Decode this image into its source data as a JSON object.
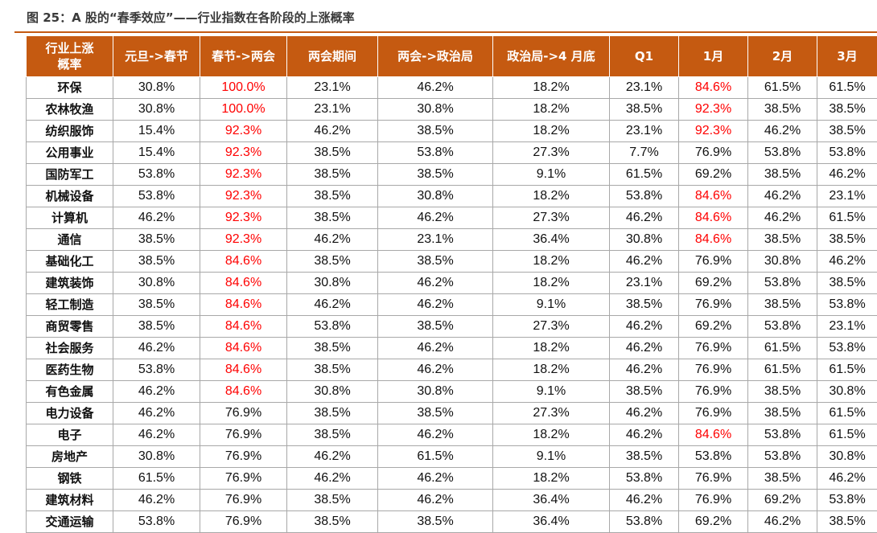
{
  "caption": "图 25：A 股的“春季效应”——行业指数在各阶段的上涨概率",
  "colors": {
    "header_bg": "#c55a11",
    "highlight": "#ff0000",
    "text": "#111111"
  },
  "headers": [
    "行业上涨概率",
    "元旦->春节",
    "春节->两会",
    "两会期间",
    "两会->政治局",
    "政治局->4 月底",
    "Q1",
    "1月",
    "2月",
    "3月"
  ],
  "rows": [
    {
      "industry": "环保",
      "values": [
        "30.8%",
        "100.0%",
        "23.1%",
        "46.2%",
        "18.2%",
        "23.1%",
        "84.6%",
        "61.5%",
        "61.5%"
      ],
      "highlight": [
        1,
        6
      ]
    },
    {
      "industry": "农林牧渔",
      "values": [
        "30.8%",
        "100.0%",
        "23.1%",
        "30.8%",
        "18.2%",
        "38.5%",
        "92.3%",
        "38.5%",
        "38.5%"
      ],
      "highlight": [
        1,
        6
      ]
    },
    {
      "industry": "纺织服饰",
      "values": [
        "15.4%",
        "92.3%",
        "46.2%",
        "38.5%",
        "18.2%",
        "23.1%",
        "92.3%",
        "46.2%",
        "38.5%"
      ],
      "highlight": [
        1,
        6
      ]
    },
    {
      "industry": "公用事业",
      "values": [
        "15.4%",
        "92.3%",
        "38.5%",
        "53.8%",
        "27.3%",
        "7.7%",
        "76.9%",
        "53.8%",
        "53.8%"
      ],
      "highlight": [
        1
      ]
    },
    {
      "industry": "国防军工",
      "values": [
        "53.8%",
        "92.3%",
        "38.5%",
        "38.5%",
        "9.1%",
        "61.5%",
        "69.2%",
        "38.5%",
        "46.2%"
      ],
      "highlight": [
        1
      ]
    },
    {
      "industry": "机械设备",
      "values": [
        "53.8%",
        "92.3%",
        "38.5%",
        "30.8%",
        "18.2%",
        "53.8%",
        "84.6%",
        "46.2%",
        "23.1%"
      ],
      "highlight": [
        1,
        6
      ]
    },
    {
      "industry": "计算机",
      "values": [
        "46.2%",
        "92.3%",
        "38.5%",
        "46.2%",
        "27.3%",
        "46.2%",
        "84.6%",
        "46.2%",
        "61.5%"
      ],
      "highlight": [
        1,
        6
      ]
    },
    {
      "industry": "通信",
      "values": [
        "38.5%",
        "92.3%",
        "46.2%",
        "23.1%",
        "36.4%",
        "30.8%",
        "84.6%",
        "38.5%",
        "38.5%"
      ],
      "highlight": [
        1,
        6
      ]
    },
    {
      "industry": "基础化工",
      "values": [
        "38.5%",
        "84.6%",
        "38.5%",
        "38.5%",
        "18.2%",
        "46.2%",
        "76.9%",
        "30.8%",
        "46.2%"
      ],
      "highlight": [
        1
      ]
    },
    {
      "industry": "建筑装饰",
      "values": [
        "30.8%",
        "84.6%",
        "30.8%",
        "46.2%",
        "18.2%",
        "23.1%",
        "69.2%",
        "53.8%",
        "38.5%"
      ],
      "highlight": [
        1
      ]
    },
    {
      "industry": "轻工制造",
      "values": [
        "38.5%",
        "84.6%",
        "46.2%",
        "46.2%",
        "9.1%",
        "38.5%",
        "76.9%",
        "38.5%",
        "53.8%"
      ],
      "highlight": [
        1
      ]
    },
    {
      "industry": "商贸零售",
      "values": [
        "38.5%",
        "84.6%",
        "53.8%",
        "38.5%",
        "27.3%",
        "46.2%",
        "69.2%",
        "53.8%",
        "23.1%"
      ],
      "highlight": [
        1
      ]
    },
    {
      "industry": "社会服务",
      "values": [
        "46.2%",
        "84.6%",
        "38.5%",
        "46.2%",
        "18.2%",
        "46.2%",
        "76.9%",
        "61.5%",
        "53.8%"
      ],
      "highlight": [
        1
      ]
    },
    {
      "industry": "医药生物",
      "values": [
        "53.8%",
        "84.6%",
        "38.5%",
        "46.2%",
        "18.2%",
        "46.2%",
        "76.9%",
        "61.5%",
        "61.5%"
      ],
      "highlight": [
        1
      ]
    },
    {
      "industry": "有色金属",
      "values": [
        "46.2%",
        "84.6%",
        "30.8%",
        "30.8%",
        "9.1%",
        "38.5%",
        "76.9%",
        "38.5%",
        "30.8%"
      ],
      "highlight": [
        1
      ]
    },
    {
      "industry": "电力设备",
      "values": [
        "46.2%",
        "76.9%",
        "38.5%",
        "38.5%",
        "27.3%",
        "46.2%",
        "76.9%",
        "38.5%",
        "61.5%"
      ],
      "highlight": []
    },
    {
      "industry": "电子",
      "values": [
        "46.2%",
        "76.9%",
        "38.5%",
        "46.2%",
        "18.2%",
        "46.2%",
        "84.6%",
        "53.8%",
        "61.5%"
      ],
      "highlight": [
        6
      ]
    },
    {
      "industry": "房地产",
      "values": [
        "30.8%",
        "76.9%",
        "46.2%",
        "61.5%",
        "9.1%",
        "38.5%",
        "53.8%",
        "53.8%",
        "30.8%"
      ],
      "highlight": []
    },
    {
      "industry": "钢铁",
      "values": [
        "61.5%",
        "76.9%",
        "46.2%",
        "46.2%",
        "18.2%",
        "53.8%",
        "76.9%",
        "38.5%",
        "46.2%"
      ],
      "highlight": []
    },
    {
      "industry": "建筑材料",
      "values": [
        "46.2%",
        "76.9%",
        "38.5%",
        "46.2%",
        "36.4%",
        "46.2%",
        "76.9%",
        "69.2%",
        "53.8%"
      ],
      "highlight": []
    },
    {
      "industry": "交通运输",
      "values": [
        "53.8%",
        "76.9%",
        "38.5%",
        "38.5%",
        "36.4%",
        "53.8%",
        "69.2%",
        "46.2%",
        "38.5%"
      ],
      "highlight": []
    }
  ]
}
